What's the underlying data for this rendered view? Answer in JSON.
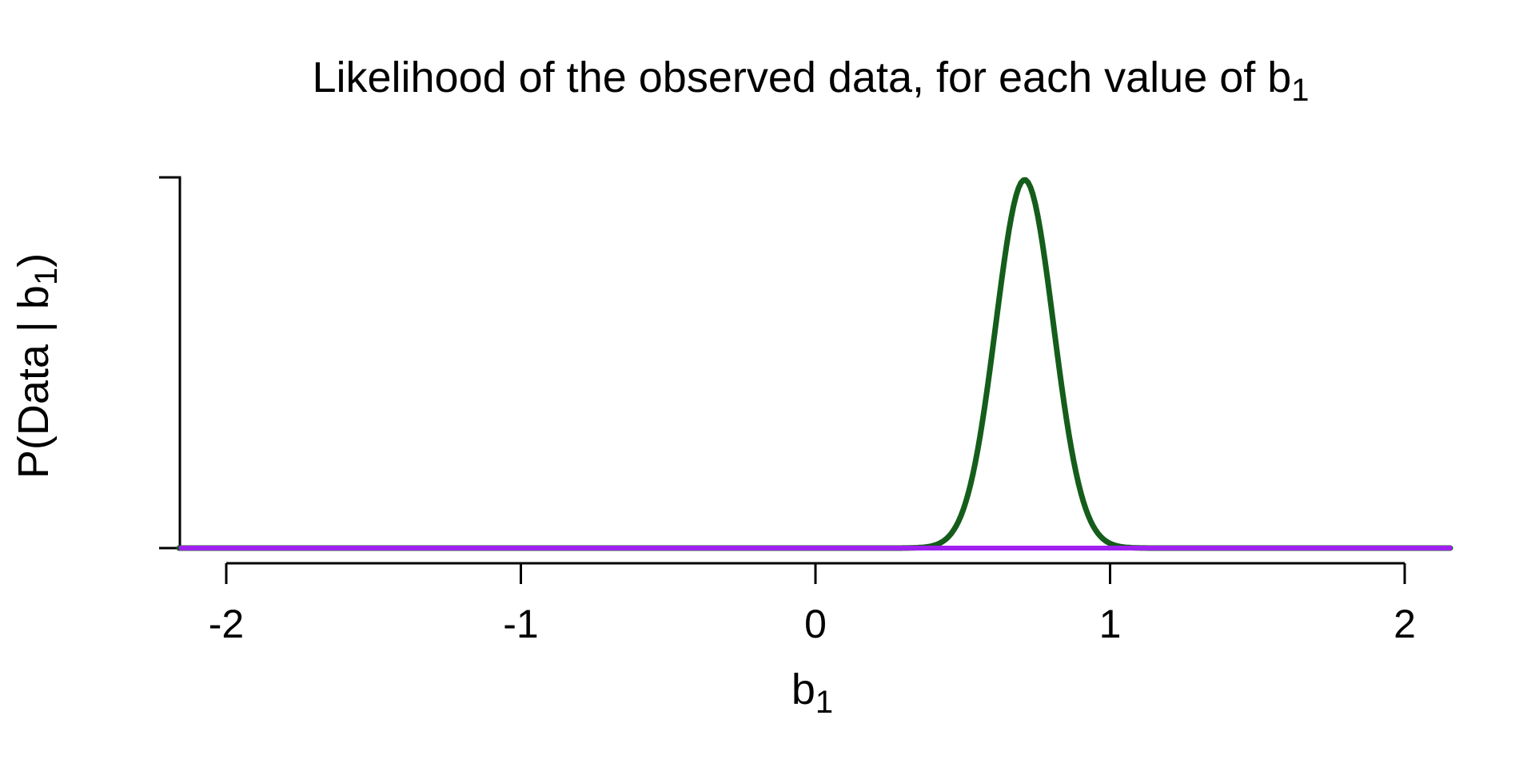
{
  "title": {
    "text": "Likelihood of the observed data, for each value of b",
    "sub": "1"
  },
  "y_axis": {
    "label_prefix": "P(Data | b",
    "label_sub": "1",
    "label_suffix": ")"
  },
  "x_axis": {
    "label": "b",
    "label_sub": "1",
    "tick_labels": [
      "-2",
      "-1",
      "0",
      "1",
      "2"
    ],
    "tick_values": [
      -2,
      -1,
      0,
      1,
      2
    ]
  },
  "colors": {
    "background": "#ffffff",
    "axis": "#000000",
    "text": "#000000",
    "likelihood_curve": "#155d1b",
    "zero_line": "#a020f0"
  },
  "chart_data": {
    "type": "line",
    "title": "Likelihood of the observed data, for each value of b1",
    "xlabel": "b1",
    "ylabel": "P(Data | b1)",
    "xlim": [
      -2.16,
      2.16
    ],
    "ylim": [
      0,
      1.0
    ],
    "xticks": [
      -2,
      -1,
      0,
      1,
      2
    ],
    "yticks_shown": "two unlabeled ticks at min and max",
    "grid": false,
    "legend": false,
    "series": [
      {
        "name": "likelihood-curve",
        "color": "#155d1b",
        "shape": "gaussian",
        "peak_x": 0.71,
        "sd": 0.098,
        "peak_y": 1.0,
        "x": [
          -2.16,
          -2,
          -1.5,
          -1,
          -0.5,
          0,
          0.2,
          0.3,
          0.4,
          0.45,
          0.5,
          0.55,
          0.6,
          0.65,
          0.7,
          0.71,
          0.75,
          0.8,
          0.85,
          0.9,
          0.95,
          1.0,
          1.05,
          1.1,
          1.2,
          1.5,
          2,
          2.16
        ],
        "y": [
          0,
          0,
          0,
          0,
          0,
          0,
          0,
          0.0002,
          0.007,
          0.03,
          0.101,
          0.264,
          0.533,
          0.829,
          0.995,
          1.0,
          0.92,
          0.656,
          0.36,
          0.153,
          0.05,
          0.013,
          0.002,
          0.0004,
          0,
          0,
          0,
          0
        ]
      },
      {
        "name": "zero-line",
        "color": "#a020f0",
        "y_value": 0,
        "x_span": [
          -2.16,
          2.16
        ]
      }
    ]
  }
}
